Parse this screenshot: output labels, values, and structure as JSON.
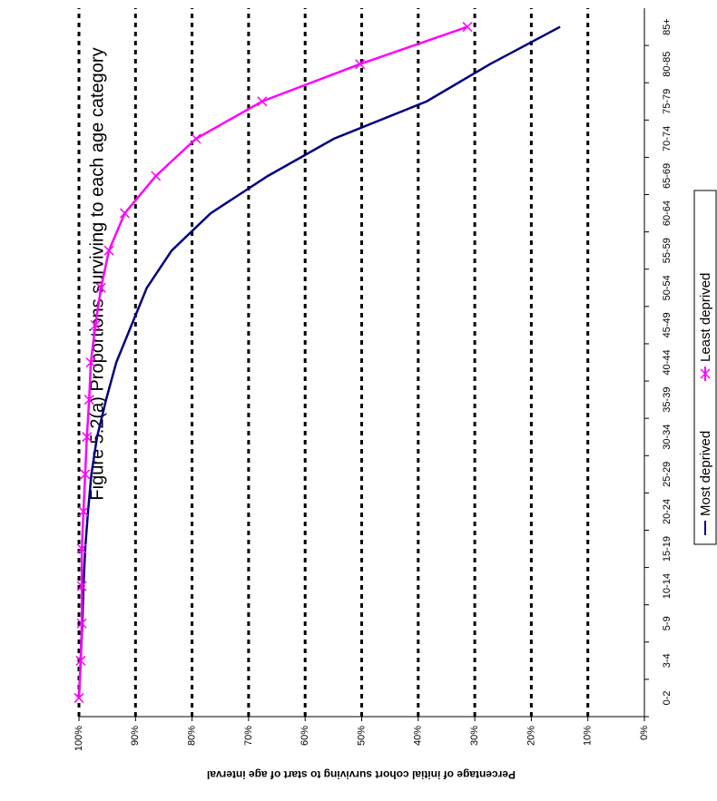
{
  "chart_data": {
    "type": "line",
    "title": "Figure 5.2(a) Proportions surviving to each age category",
    "y_label": "Percentage of initial cohort surviving to start of age interval",
    "categories": [
      "0-2",
      "3-4",
      "5-9",
      "10-14",
      "15-19",
      "20-24",
      "25-29",
      "30-34",
      "35-39",
      "40-44",
      "45-49",
      "50-54",
      "55-59",
      "60-64",
      "65-69",
      "70-74",
      "75-79",
      "80-85",
      "85+"
    ],
    "series": [
      {
        "name": "Most deprived",
        "color": "#000080",
        "values": [
          100,
          99.7,
          99.4,
          99.2,
          98.9,
          98.4,
          97.8,
          96.8,
          95.2,
          93.4,
          90.7,
          88.0,
          83.6,
          76.7,
          66.6,
          54.9,
          38.5,
          27.3,
          14.9
        ]
      },
      {
        "name": "Least deprived",
        "color": "#ff00ff",
        "marker": "x",
        "values": [
          100,
          99.7,
          99.5,
          99.5,
          99.5,
          99.2,
          98.9,
          98.6,
          98.2,
          97.9,
          97.1,
          96.1,
          94.7,
          91.9,
          86.4,
          79.3,
          67.6,
          50.3,
          31.3
        ]
      }
    ],
    "ylim": [
      0,
      100
    ],
    "yticks": [
      {
        "value": 0,
        "label": "0%"
      },
      {
        "value": 10,
        "label": "10%"
      },
      {
        "value": 20,
        "label": "20%"
      },
      {
        "value": 30,
        "label": "30%"
      },
      {
        "value": 40,
        "label": "40%"
      },
      {
        "value": 50,
        "label": "50%"
      },
      {
        "value": 60,
        "label": "60%"
      },
      {
        "value": 70,
        "label": "70%"
      },
      {
        "value": 80,
        "label": "80%"
      },
      {
        "value": 90,
        "label": "90%"
      },
      {
        "value": 100,
        "label": "100%"
      }
    ],
    "grid": true,
    "rotated": true,
    "legend": "bottom"
  }
}
